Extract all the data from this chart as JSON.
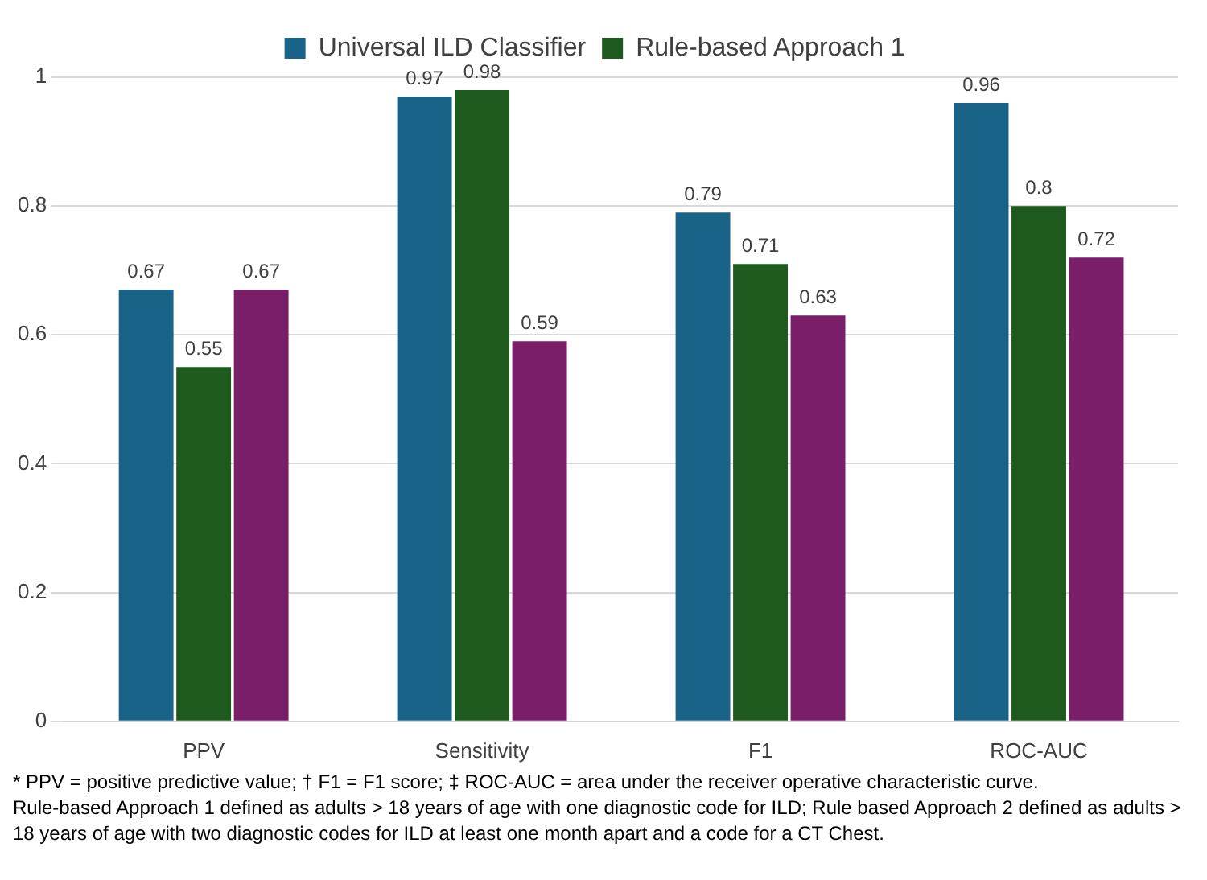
{
  "chart_data": {
    "type": "bar",
    "categories": [
      "PPV",
      "Sensitivity",
      "F1",
      "ROC-AUC"
    ],
    "series": [
      {
        "name": "Universal ILD Classifier",
        "color": "#1a6388",
        "values": [
          0.67,
          0.97,
          0.79,
          0.96
        ]
      },
      {
        "name": "Rule-based Approach 1",
        "color": "#1e5a1e",
        "values": [
          0.55,
          0.98,
          0.71,
          0.8
        ]
      },
      {
        "color": "#7a1e6a",
        "values": [
          0.67,
          0.59,
          0.63,
          0.72
        ]
      }
    ],
    "ylim": [
      0,
      1
    ],
    "yticks": [
      0,
      0.2,
      0.4,
      0.6,
      0.8,
      1
    ],
    "grid": "y",
    "legend": "top",
    "data_labels": true,
    "annotations": [
      "* PPV = positive predictive value; † F1 = F1 score; ‡ ROC-AUC = area under the receiver operative characteristic curve.",
      "Rule-based Approach 1 defined as adults > 18 years of age with one diagnostic code for ILD; Rule based Approach 2 defined as adults > 18 years of age with two diagnostic codes for ILD at least one month apart and a code for a CT Chest."
    ]
  }
}
